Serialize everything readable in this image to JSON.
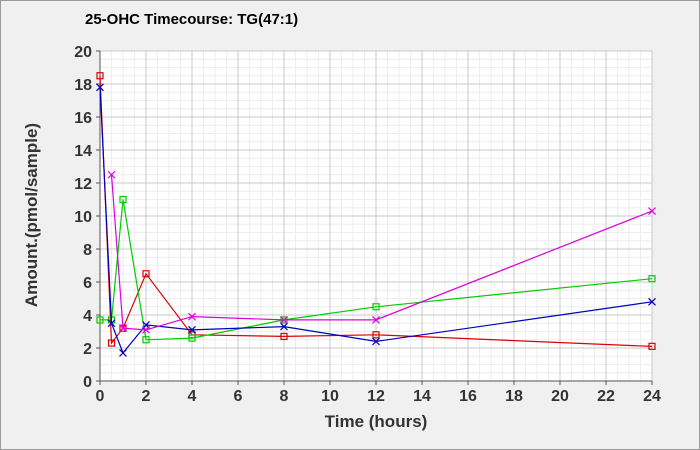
{
  "chart_data": {
    "type": "line",
    "title": "25-OHC Timecourse: TG(47:1)",
    "xlabel": "Time (hours)",
    "ylabel": "Amount.(pmol/sample)",
    "xlim": [
      0,
      24
    ],
    "ylim": [
      0,
      20
    ],
    "xticks": [
      0,
      2,
      4,
      6,
      8,
      10,
      12,
      14,
      16,
      18,
      20,
      22,
      24
    ],
    "yticks": [
      0,
      2,
      4,
      6,
      8,
      10,
      12,
      14,
      16,
      18,
      20
    ],
    "grid": true,
    "legend": "none",
    "series": [
      {
        "color": "#dd0000",
        "marker": "square",
        "x": [
          0,
          0.5,
          1,
          2,
          4,
          8,
          12,
          24
        ],
        "y": [
          18.5,
          2.3,
          3.2,
          6.5,
          2.8,
          2.7,
          2.8,
          2.1
        ]
      },
      {
        "color": "#00cc00",
        "marker": "square",
        "x": [
          0,
          0.5,
          1,
          2,
          4,
          8,
          12,
          24
        ],
        "y": [
          3.7,
          3.7,
          11.0,
          2.5,
          2.6,
          3.7,
          4.5,
          6.2
        ]
      },
      {
        "color": "#0000bb",
        "marker": "x",
        "x": [
          0,
          0.5,
          1,
          2,
          4,
          8,
          12,
          24
        ],
        "y": [
          17.8,
          3.5,
          1.7,
          3.4,
          3.1,
          3.3,
          2.4,
          4.8
        ]
      },
      {
        "color": "#dd00dd",
        "marker": "x",
        "x": [
          0.5,
          1,
          2,
          4,
          8,
          12,
          24
        ],
        "y": [
          12.5,
          3.2,
          3.1,
          3.9,
          3.7,
          3.7,
          10.3
        ]
      }
    ]
  }
}
